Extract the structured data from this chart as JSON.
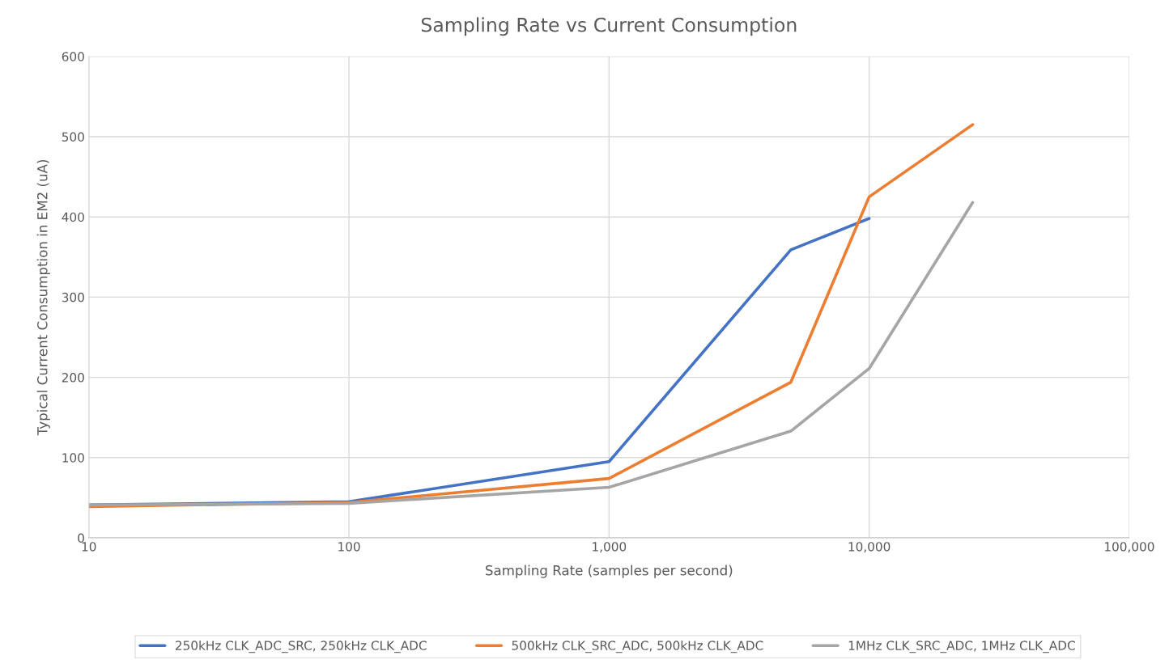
{
  "chart_data": {
    "type": "line",
    "title": "Sampling Rate vs Current Consumption",
    "xlabel": "Sampling Rate (samples per second)",
    "ylabel": "Typical Current Consumption in EM2 (uA)",
    "log": "x",
    "grid": true,
    "legend": "bottom",
    "marker": "none",
    "line_style": "solid",
    "xlim": [
      10,
      100000
    ],
    "xticks": [
      10,
      100,
      {
        "value": 1000,
        "label": "1,000"
      },
      {
        "value": 10000,
        "label": "10,000"
      },
      {
        "value": 100000,
        "label": "100,000"
      }
    ],
    "ylim": [
      0,
      600
    ],
    "yticks": [
      0,
      100,
      200,
      300,
      400,
      500,
      600
    ],
    "series": [
      {
        "name": "250kHz CLK_ADC_SRC, 250kHz CLK_ADC",
        "color": "#4472c4",
        "x": [
          10,
          100,
          1000,
          5000,
          10000
        ],
        "values": [
          41,
          45,
          95,
          359,
          398
        ]
      },
      {
        "name": "500kHz CLK_SRC_ADC, 500kHz CLK_ADC",
        "color": "#ed7d31",
        "x": [
          10,
          100,
          1000,
          5000,
          10000,
          25000
        ],
        "values": [
          39,
          44,
          74,
          194,
          425,
          515
        ]
      },
      {
        "name": "1MHz CLK_SRC_ADC, 1MHz CLK_ADC",
        "color": "#a5a5a5",
        "x": [
          10,
          100,
          1000,
          5000,
          10000,
          25000
        ],
        "values": [
          41,
          43,
          63,
          133,
          211,
          418
        ]
      }
    ]
  }
}
